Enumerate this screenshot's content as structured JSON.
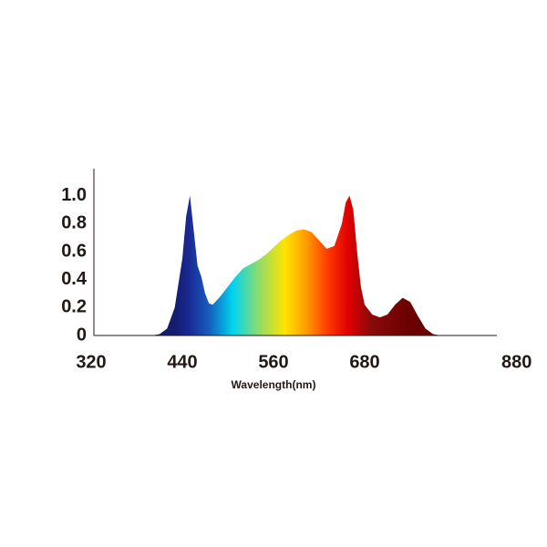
{
  "chart_data": {
    "type": "area",
    "x_label": "Wavelength(nm)",
    "x": [
      320,
      400,
      410,
      420,
      430,
      440,
      445,
      450,
      455,
      460,
      465,
      470,
      475,
      480,
      490,
      500,
      510,
      520,
      530,
      540,
      550,
      560,
      570,
      580,
      590,
      600,
      610,
      620,
      630,
      640,
      650,
      655,
      660,
      665,
      670,
      675,
      680,
      690,
      700,
      710,
      720,
      730,
      740,
      750,
      760,
      770,
      780,
      854
    ],
    "values": [
      0,
      0,
      0.01,
      0.05,
      0.2,
      0.55,
      0.85,
      1.0,
      0.75,
      0.5,
      0.42,
      0.3,
      0.23,
      0.22,
      0.28,
      0.35,
      0.42,
      0.48,
      0.51,
      0.54,
      0.58,
      0.63,
      0.68,
      0.72,
      0.75,
      0.76,
      0.74,
      0.68,
      0.62,
      0.64,
      0.8,
      0.95,
      1.0,
      0.9,
      0.6,
      0.35,
      0.22,
      0.15,
      0.13,
      0.15,
      0.22,
      0.27,
      0.24,
      0.14,
      0.05,
      0.01,
      0,
      0
    ],
    "xlim": [
      320,
      854
    ],
    "xticks": [
      320,
      440,
      560,
      680,
      880
    ],
    "ylim": [
      0,
      1.2
    ],
    "yticks": [
      0,
      {
        "value": 0.2,
        "label": "0.2"
      },
      {
        "value": 0.4,
        "label": "0.4"
      },
      {
        "value": 0.6,
        "label": "0.6"
      },
      {
        "value": 0.8,
        "label": "0.8"
      },
      {
        "value": 1.0,
        "label": "1.0"
      }
    ],
    "grid": false
  }
}
